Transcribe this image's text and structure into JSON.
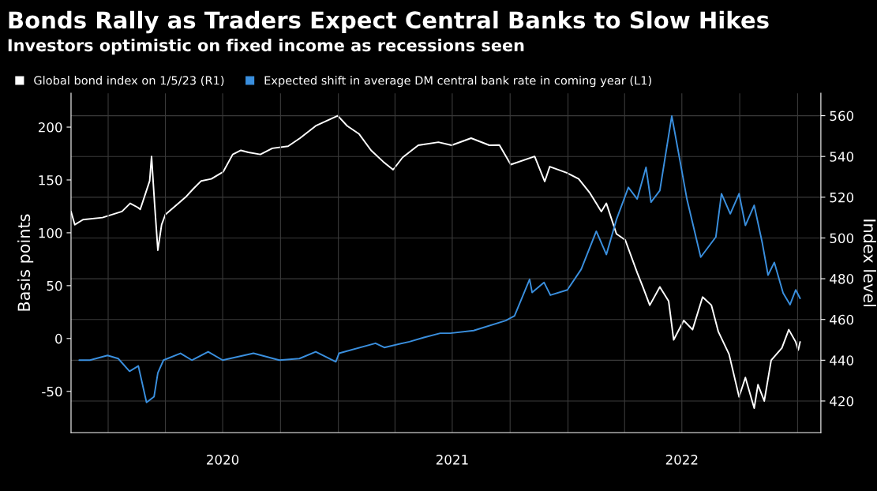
{
  "chart_data": {
    "type": "line",
    "title": "Bonds Rally as Traders Expect Central Banks to Slow Hikes",
    "subtitle": "Investors optimistic on fixed income as recessions seen",
    "ylabel": "Basis points",
    "y2label": "Index level",
    "legend": "top left",
    "grid": true,
    "xlim": [
      "2019-11-03",
      "2023-02-07"
    ],
    "xticks": [
      {
        "value": "2020-01-01",
        "label": null
      },
      {
        "value": "2020-04-01",
        "label": null
      },
      {
        "value": "2020-07-01",
        "label": "2020"
      },
      {
        "value": "2020-10-01",
        "label": null
      },
      {
        "value": "2021-01-01",
        "label": null
      },
      {
        "value": "2021-04-01",
        "label": null
      },
      {
        "value": "2021-07-01",
        "label": "2021"
      },
      {
        "value": "2021-10-01",
        "label": null
      },
      {
        "value": "2022-01-01",
        "label": null
      },
      {
        "value": "2022-04-01",
        "label": null
      },
      {
        "value": "2022-07-01",
        "label": "2022"
      },
      {
        "value": "2022-10-01",
        "label": null
      },
      {
        "value": "2023-01-01",
        "label": null
      }
    ],
    "ylim": [
      -89,
      232
    ],
    "yticks": [
      -50,
      0,
      50,
      100,
      150,
      200
    ],
    "y2lim": [
      404.5,
      571
    ],
    "y2ticks": [
      420,
      440,
      460,
      480,
      500,
      520,
      540,
      560
    ],
    "series": [
      {
        "name": "Global bond index on 1/5/23 (R1)",
        "color": "#ffffff",
        "axis": "y2",
        "x": [
          "2019-11-03",
          "2019-11-09",
          "2019-11-22",
          "2019-12-23",
          "2020-01-23",
          "2020-02-05",
          "2020-02-17",
          "2020-02-21",
          "2020-03-07",
          "2020-03-10",
          "2020-03-15",
          "2020-03-20",
          "2020-03-26",
          "2020-04-01",
          "2020-04-16",
          "2020-05-03",
          "2020-05-15",
          "2020-05-28",
          "2020-06-13",
          "2020-07-02",
          "2020-07-17",
          "2020-07-30",
          "2020-08-11",
          "2020-08-30",
          "2020-09-18",
          "2020-10-13",
          "2020-11-01",
          "2020-11-26",
          "2020-12-31",
          "2021-01-15",
          "2021-02-03",
          "2021-02-22",
          "2021-03-13",
          "2021-03-29",
          "2021-04-13",
          "2021-05-08",
          "2021-06-09",
          "2021-06-30",
          "2021-07-31",
          "2021-08-29",
          "2021-09-14",
          "2021-10-02",
          "2021-11-09",
          "2021-11-25",
          "2021-12-03",
          "2021-12-30",
          "2022-01-18",
          "2022-02-05",
          "2022-02-23",
          "2022-03-03",
          "2022-03-19",
          "2022-04-02",
          "2022-04-21",
          "2022-04-30",
          "2022-05-11",
          "2022-05-27",
          "2022-06-10",
          "2022-06-18",
          "2022-07-04",
          "2022-07-18",
          "2022-08-03",
          "2022-08-17",
          "2022-08-28",
          "2022-09-14",
          "2022-09-30",
          "2022-10-10",
          "2022-10-24",
          "2022-10-30",
          "2022-11-09",
          "2022-11-20",
          "2022-12-07",
          "2022-12-18",
          "2022-12-29",
          "2023-01-02",
          "2023-01-05"
        ],
        "values": [
          513,
          506.5,
          509,
          510,
          513,
          517,
          515,
          514,
          528,
          540,
          516,
          494,
          506.5,
          511.5,
          515.5,
          520,
          524,
          528,
          529,
          532.5,
          541,
          543,
          542,
          541,
          544,
          545,
          549,
          555,
          560,
          555,
          551,
          543,
          537.5,
          533.5,
          539.5,
          545.5,
          547,
          545.5,
          549,
          545.5,
          545.6,
          536,
          540,
          527.7,
          535,
          532,
          529,
          522,
          513,
          517,
          502,
          499,
          483,
          476,
          467,
          476,
          469,
          450,
          459.5,
          455,
          471,
          467,
          454,
          443,
          422,
          431.5,
          416.5,
          428,
          420,
          440,
          446,
          455,
          449,
          445,
          449
        ]
      },
      {
        "name": "Expected shift in average DM central bank rate in coming year (L1)",
        "color": "#3a8fde",
        "x": [
          "2019-11-16",
          "2019-12-03",
          "2019-12-31",
          "2020-01-17",
          "2020-02-04",
          "2020-02-18",
          "2020-03-02",
          "2020-03-14",
          "2020-03-20",
          "2020-03-29",
          "2020-04-25",
          "2020-05-13",
          "2020-06-08",
          "2020-07-01",
          "2020-08-19",
          "2020-09-29",
          "2020-10-31",
          "2020-11-26",
          "2020-12-28",
          "2021-01-02",
          "2021-03-01",
          "2021-03-15",
          "2021-04-24",
          "2021-05-17",
          "2021-06-12",
          "2021-06-28",
          "2021-08-04",
          "2021-09-24",
          "2021-10-08",
          "2021-11-01",
          "2021-11-05",
          "2021-11-24",
          "2021-12-04",
          "2021-12-31",
          "2022-01-22",
          "2022-02-15",
          "2022-03-03",
          "2022-03-19",
          "2022-04-07",
          "2022-04-21",
          "2022-05-05",
          "2022-05-13",
          "2022-05-27",
          "2022-06-15",
          "2022-06-29",
          "2022-07-09",
          "2022-07-31",
          "2022-08-24",
          "2022-09-02",
          "2022-09-16",
          "2022-09-30",
          "2022-10-10",
          "2022-10-24",
          "2022-11-06",
          "2022-11-15",
          "2022-11-25",
          "2022-12-09",
          "2022-12-20",
          "2022-12-29",
          "2023-01-05"
        ],
        "values": [
          -20.5,
          -20.5,
          -16,
          -19,
          -31,
          -26,
          -60.5,
          -55,
          -32.5,
          -20.5,
          -14,
          -20.5,
          -12.5,
          -20.5,
          -14,
          -20.5,
          -19,
          -12.5,
          -22,
          -14,
          -4.5,
          -8.5,
          -3,
          1,
          5,
          5,
          7.5,
          17,
          21.5,
          56,
          43.5,
          53,
          41,
          46,
          65.5,
          101.5,
          79.5,
          112.5,
          143,
          132,
          162,
          129,
          140,
          210.5,
          165,
          132,
          77,
          96,
          137,
          118,
          137,
          107,
          126,
          90,
          60,
          72,
          43,
          32,
          46,
          38
        ]
      }
    ]
  }
}
